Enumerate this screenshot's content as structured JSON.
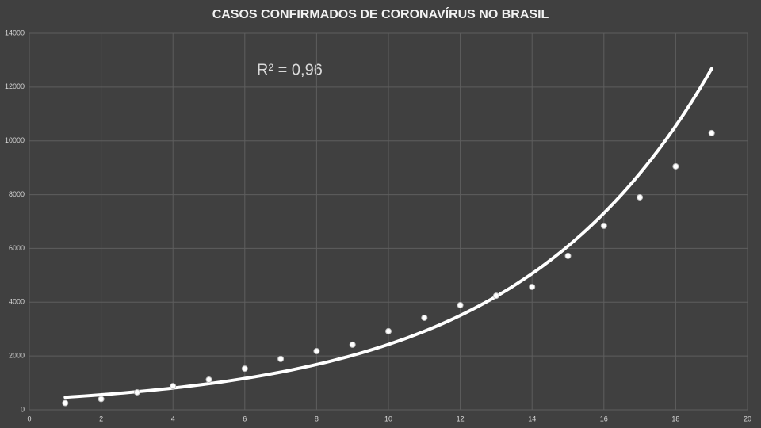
{
  "chart_data": {
    "type": "scatter",
    "title": "CASOS CONFIRMADOS DE CORONAVÍRUS NO BRASIL",
    "annotation": "R² = 0,96",
    "trendline": "exponential",
    "x": [
      1,
      2,
      3,
      4,
      5,
      6,
      7,
      8,
      9,
      10,
      11,
      12,
      13,
      14,
      15,
      16,
      17,
      18,
      19
    ],
    "values": [
      250,
      400,
      650,
      880,
      1120,
      1530,
      1890,
      2180,
      2420,
      2920,
      3420,
      3890,
      4240,
      4570,
      5720,
      6840,
      7900,
      9050,
      10290
    ],
    "color": "#ffffff",
    "xlim": [
      0,
      20
    ],
    "xticks": [
      0,
      2,
      4,
      6,
      8,
      10,
      12,
      14,
      16,
      18,
      20
    ],
    "ylim": [
      0,
      14000
    ],
    "yticks": [
      0,
      2000,
      4000,
      6000,
      8000,
      10000,
      12000,
      14000
    ],
    "grid": true
  }
}
